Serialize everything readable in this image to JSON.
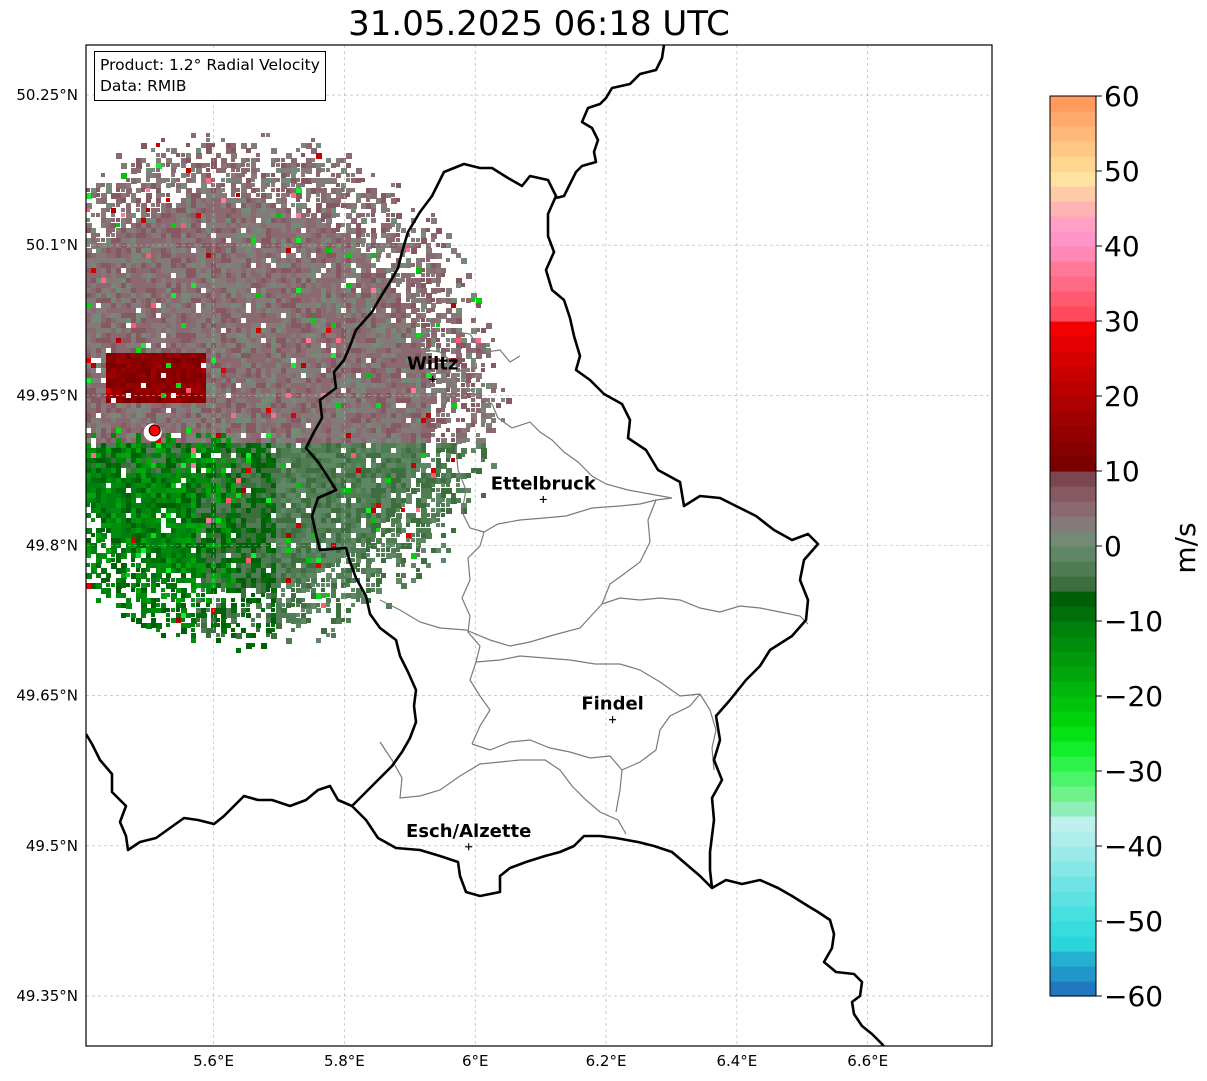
{
  "title": "31.05.2025 06:18 UTC",
  "info_box": {
    "product": "Product: 1.2° Radial Velocity",
    "data": "Data: RMIB"
  },
  "map": {
    "lon_range": [
      5.405,
      6.79
    ],
    "lat_range": [
      49.3,
      50.3
    ],
    "lon_ticks": [
      {
        "value": 5.6,
        "label": "5.6°E"
      },
      {
        "value": 5.8,
        "label": "5.8°E"
      },
      {
        "value": 6.0,
        "label": "6°E"
      },
      {
        "value": 6.2,
        "label": "6.2°E"
      },
      {
        "value": 6.4,
        "label": "6.4°E"
      },
      {
        "value": 6.6,
        "label": "6.6°E"
      }
    ],
    "lat_ticks": [
      {
        "value": 50.25,
        "label": "50.25°N"
      },
      {
        "value": 50.1,
        "label": "50.1°N"
      },
      {
        "value": 49.95,
        "label": "49.95°N"
      },
      {
        "value": 49.8,
        "label": "49.8°N"
      },
      {
        "value": 49.65,
        "label": "49.65°N"
      },
      {
        "value": 49.5,
        "label": "49.5°N"
      },
      {
        "value": 49.35,
        "label": "49.35°N"
      }
    ],
    "grid": true,
    "radar_site": {
      "lon": 5.51,
      "lat": 49.915
    },
    "cities": [
      {
        "name": "Wiltz",
        "lon": 5.935,
        "lat": 49.966
      },
      {
        "name": "Ettelbruck",
        "lon": 6.104,
        "lat": 49.846
      },
      {
        "name": "Findel",
        "lon": 6.21,
        "lat": 49.626
      },
      {
        "name": "Esch/Alzette",
        "lon": 5.99,
        "lat": 49.499
      }
    ]
  },
  "colorbar": {
    "label": "m/s",
    "min": -60,
    "max": 60,
    "ticks": [
      {
        "value": 60,
        "label": "60"
      },
      {
        "value": 50,
        "label": "50"
      },
      {
        "value": 40,
        "label": "40"
      },
      {
        "value": 30,
        "label": "30"
      },
      {
        "value": 20,
        "label": "20"
      },
      {
        "value": 10,
        "label": "10"
      },
      {
        "value": 0,
        "label": "0"
      },
      {
        "value": -10,
        "label": "−10"
      },
      {
        "value": -20,
        "label": "−20"
      },
      {
        "value": -30,
        "label": "−30"
      },
      {
        "value": -40,
        "label": "−40"
      },
      {
        "value": -50,
        "label": "−50"
      },
      {
        "value": -60,
        "label": "−60"
      }
    ],
    "colors": {
      "-60": "#1f78c0",
      "-58": "#2196c8",
      "-56": "#25b0d0",
      "-54": "#2ad6dc",
      "-52": "#37dcdf",
      "-50": "#48dfe0",
      "-48": "#5ce2e2",
      "-46": "#70e4e4",
      "-44": "#85e7e6",
      "-42": "#99eae8",
      "-40": "#aeedeb",
      "-38": "#bff0ee",
      "-36": "#8ef0b8",
      "-34": "#6ef28a",
      "-32": "#4cf46a",
      "-30": "#2cf24a",
      "-28": "#12ee2c",
      "-26": "#04e214",
      "-24": "#00d20c",
      "-22": "#00c40c",
      "-20": "#00b50c",
      "-18": "#00a60c",
      "-16": "#009a0c",
      "-14": "#008d0c",
      "-12": "#00800c",
      "-10": "#006f0a",
      "-8": "#006008",
      "-6": "#3e6e3e",
      "-4": "#507c54",
      "-2": "#5f8766",
      "0": "#738b76",
      "2": "#857a7a",
      "4": "#8a6970",
      "6": "#855862",
      "8": "#7c4650",
      "10": "#7a0000",
      "12": "#860000",
      "14": "#930000",
      "16": "#9f0000",
      "18": "#ad0000",
      "20": "#bb0000",
      "22": "#c80000",
      "24": "#d60000",
      "26": "#e40000",
      "28": "#f30000",
      "30": "#ff4a5e",
      "32": "#ff5a70",
      "34": "#ff6a84",
      "36": "#ff7a9a",
      "38": "#ff88b4",
      "40": "#ff94c8",
      "42": "#ffa0c4",
      "44": "#ffb4b4",
      "46": "#ffcaa8",
      "48": "#ffe1a0",
      "50": "#ffd590",
      "52": "#ffc684",
      "54": "#ffb878",
      "56": "#ffaa6a",
      "58": "#ff9c5c"
    }
  }
}
